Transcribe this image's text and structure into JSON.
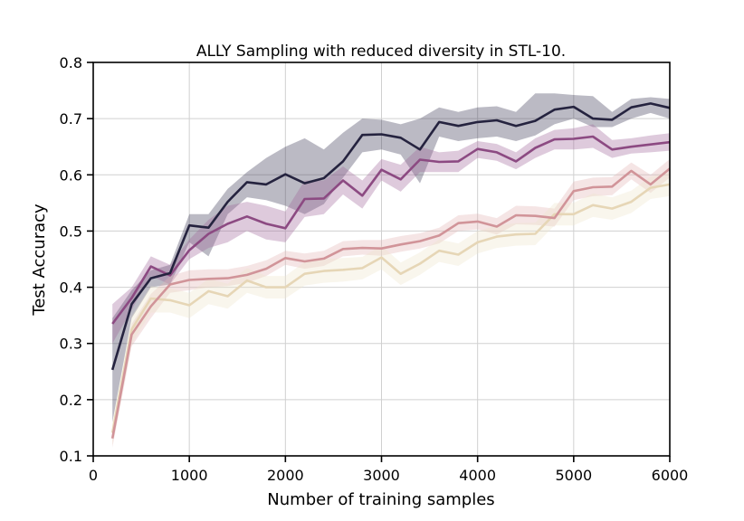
{
  "chart_data": {
    "type": "line",
    "title": "ALLY Sampling with reduced diversity in STL-10.",
    "xlabel": "Number of training samples",
    "ylabel": "Test Accuracy",
    "xlim": [
      0,
      6000
    ],
    "ylim": [
      0.1,
      0.8
    ],
    "xticks": [
      0,
      1000,
      2000,
      3000,
      4000,
      5000,
      6000
    ],
    "yticks": [
      0.1,
      0.2,
      0.3,
      0.4,
      0.5,
      0.6,
      0.7,
      0.8
    ],
    "xtick_labels": [
      "0",
      "1000",
      "2000",
      "3000",
      "4000",
      "5000",
      "6000"
    ],
    "ytick_labels": [
      "0.1",
      "0.2",
      "0.3",
      "0.4",
      "0.5",
      "0.6",
      "0.7",
      "0.8"
    ],
    "grid": true,
    "legend": "none",
    "x": [
      200,
      400,
      600,
      800,
      1000,
      1200,
      1400,
      1600,
      1800,
      2000,
      2200,
      2400,
      2600,
      2800,
      3000,
      3200,
      3400,
      3600,
      3800,
      4000,
      4200,
      4400,
      4600,
      4800,
      5000,
      5200,
      5400,
      5600,
      5800,
      6000
    ],
    "series": [
      {
        "color": "#25233f",
        "band_color": "#3b3a55",
        "values": [
          0.253,
          0.37,
          0.416,
          0.425,
          0.51,
          0.506,
          0.552,
          0.587,
          0.583,
          0.601,
          0.585,
          0.594,
          0.624,
          0.671,
          0.672,
          0.666,
          0.645,
          0.694,
          0.687,
          0.694,
          0.697,
          0.687,
          0.696,
          0.716,
          0.721,
          0.7,
          0.698,
          0.72,
          0.727,
          0.719
        ],
        "lower": [
          0.16,
          0.345,
          0.4,
          0.405,
          0.48,
          0.455,
          0.53,
          0.56,
          0.555,
          0.545,
          0.53,
          0.548,
          0.595,
          0.64,
          0.645,
          0.636,
          0.585,
          0.668,
          0.66,
          0.665,
          0.668,
          0.66,
          0.67,
          0.69,
          0.7,
          0.685,
          0.685,
          0.7,
          0.71,
          0.7
        ],
        "upper": [
          0.345,
          0.395,
          0.43,
          0.44,
          0.53,
          0.53,
          0.575,
          0.605,
          0.63,
          0.65,
          0.665,
          0.645,
          0.675,
          0.7,
          0.698,
          0.69,
          0.7,
          0.72,
          0.712,
          0.72,
          0.722,
          0.712,
          0.745,
          0.745,
          0.742,
          0.74,
          0.712,
          0.735,
          0.738,
          0.735
        ]
      },
      {
        "color": "#8c4a82",
        "band_color": "#a0689a",
        "values": [
          0.335,
          0.381,
          0.437,
          0.421,
          0.466,
          0.495,
          0.513,
          0.526,
          0.513,
          0.505,
          0.557,
          0.558,
          0.59,
          0.563,
          0.609,
          0.592,
          0.627,
          0.623,
          0.624,
          0.646,
          0.64,
          0.624,
          0.648,
          0.663,
          0.664,
          0.668,
          0.645,
          0.65,
          0.654,
          0.658
        ],
        "lower": [
          0.3,
          0.36,
          0.42,
          0.405,
          0.45,
          0.47,
          0.48,
          0.5,
          0.485,
          0.48,
          0.525,
          0.53,
          0.565,
          0.54,
          0.59,
          0.57,
          0.605,
          0.605,
          0.605,
          0.63,
          0.625,
          0.61,
          0.63,
          0.645,
          0.645,
          0.648,
          0.63,
          0.638,
          0.64,
          0.643
        ],
        "upper": [
          0.37,
          0.4,
          0.455,
          0.44,
          0.485,
          0.52,
          0.545,
          0.552,
          0.545,
          0.535,
          0.59,
          0.59,
          0.615,
          0.59,
          0.628,
          0.618,
          0.65,
          0.64,
          0.643,
          0.66,
          0.655,
          0.64,
          0.665,
          0.68,
          0.683,
          0.69,
          0.662,
          0.665,
          0.67,
          0.674
        ]
      },
      {
        "color": "#d19499",
        "band_color": "#e2b4b4",
        "values": [
          0.131,
          0.316,
          0.366,
          0.405,
          0.413,
          0.415,
          0.416,
          0.422,
          0.433,
          0.452,
          0.446,
          0.451,
          0.468,
          0.47,
          0.469,
          0.476,
          0.482,
          0.492,
          0.514,
          0.517,
          0.508,
          0.528,
          0.527,
          0.523,
          0.571,
          0.578,
          0.579,
          0.607,
          0.583,
          0.611
        ],
        "lower": [
          0.115,
          0.295,
          0.345,
          0.39,
          0.395,
          0.4,
          0.402,
          0.408,
          0.42,
          0.44,
          0.433,
          0.438,
          0.455,
          0.458,
          0.456,
          0.463,
          0.469,
          0.478,
          0.5,
          0.503,
          0.494,
          0.512,
          0.511,
          0.508,
          0.555,
          0.562,
          0.564,
          0.592,
          0.568,
          0.595
        ],
        "upper": [
          0.148,
          0.335,
          0.388,
          0.42,
          0.43,
          0.432,
          0.432,
          0.438,
          0.448,
          0.465,
          0.46,
          0.465,
          0.482,
          0.484,
          0.484,
          0.491,
          0.496,
          0.506,
          0.528,
          0.531,
          0.523,
          0.545,
          0.544,
          0.54,
          0.588,
          0.595,
          0.596,
          0.622,
          0.6,
          0.628
        ]
      },
      {
        "color": "#e6d6b6",
        "band_color": "#efe6cc",
        "values": [
          0.141,
          0.325,
          0.38,
          0.377,
          0.368,
          0.393,
          0.384,
          0.412,
          0.4,
          0.4,
          0.424,
          0.429,
          0.431,
          0.434,
          0.453,
          0.424,
          0.442,
          0.465,
          0.458,
          0.48,
          0.49,
          0.494,
          0.495,
          0.53,
          0.53,
          0.546,
          0.54,
          0.552,
          0.577,
          0.583
        ],
        "lower": [
          0.12,
          0.3,
          0.355,
          0.355,
          0.345,
          0.37,
          0.362,
          0.39,
          0.38,
          0.38,
          0.403,
          0.408,
          0.41,
          0.414,
          0.432,
          0.404,
          0.422,
          0.445,
          0.438,
          0.46,
          0.47,
          0.474,
          0.475,
          0.51,
          0.51,
          0.525,
          0.52,
          0.532,
          0.557,
          0.562
        ],
        "upper": [
          0.16,
          0.348,
          0.402,
          0.398,
          0.39,
          0.415,
          0.406,
          0.434,
          0.42,
          0.42,
          0.445,
          0.45,
          0.452,
          0.454,
          0.474,
          0.444,
          0.462,
          0.485,
          0.478,
          0.5,
          0.51,
          0.514,
          0.515,
          0.55,
          0.55,
          0.567,
          0.56,
          0.572,
          0.597,
          0.604
        ]
      }
    ]
  }
}
